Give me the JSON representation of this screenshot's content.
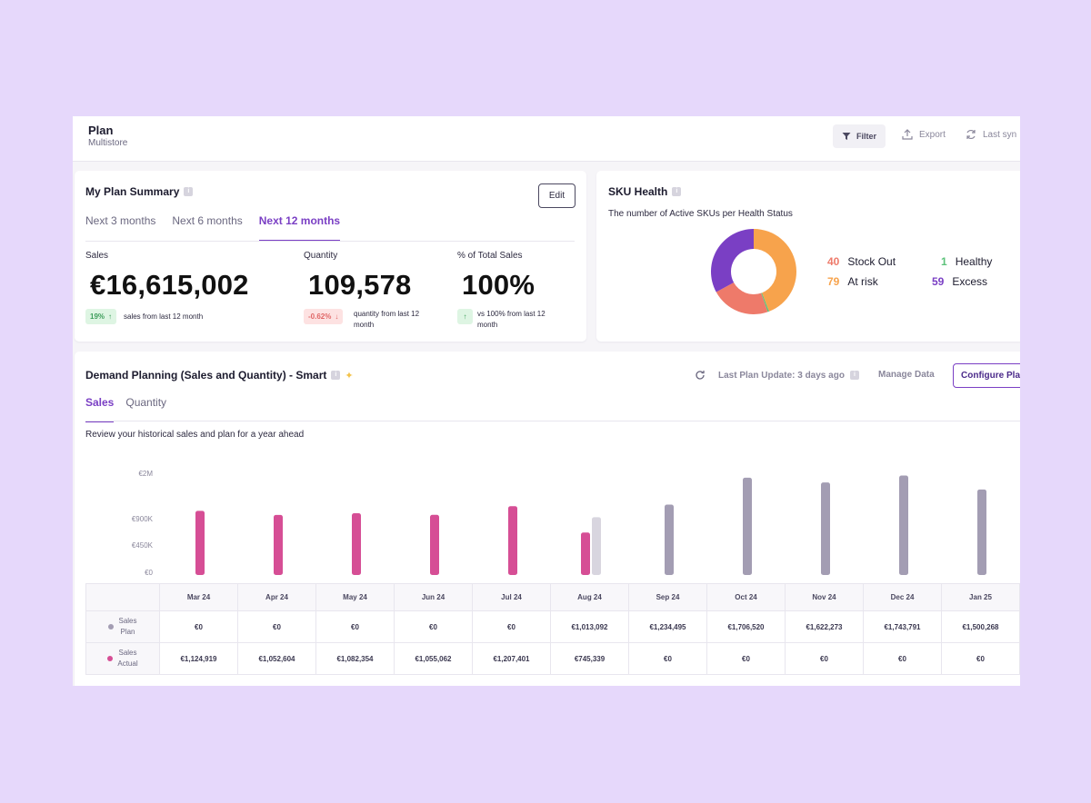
{
  "header": {
    "title": "Plan",
    "subtitle": "Multistore",
    "filter_label": "Filter",
    "export_label": "Export",
    "sync_label": "Last syn"
  },
  "plan_summary": {
    "title": "My Plan Summary",
    "edit_label": "Edit",
    "tabs": [
      {
        "label": "Next 3 months",
        "active": false
      },
      {
        "label": "Next 6 months",
        "active": false
      },
      {
        "label": "Next 12 months",
        "active": true
      }
    ],
    "metrics": [
      {
        "label": "Sales",
        "value": "€16,615,002",
        "badge": "19%",
        "trend": "up",
        "note": "sales from last 12 month"
      },
      {
        "label": "Quantity",
        "value": "109,578",
        "badge": "-0.62%",
        "trend": "down",
        "note": "quantity from last 12 month"
      },
      {
        "label": "% of Total Sales",
        "value": "100%",
        "badge": "",
        "trend": "up",
        "note": "vs 100% from last 12 month"
      }
    ]
  },
  "sku_health": {
    "title": "SKU Health",
    "subtitle": "The number of Active SKUs per Health Status",
    "statuses": [
      {
        "count": "40",
        "label": "Stock Out",
        "color": "#ee7a6a"
      },
      {
        "count": "1",
        "label": "Healthy",
        "color": "#5cc27a"
      },
      {
        "count": "79",
        "label": "At risk",
        "color": "#f7a34c"
      },
      {
        "count": "59",
        "label": "Excess",
        "color": "#7a3fc4"
      }
    ]
  },
  "demand": {
    "title": "Demand Planning (Sales and Quantity) - Smart",
    "last_update": "Last Plan Update: 3 days ago",
    "manage_label": "Manage Data",
    "configure_label": "Configure Pla",
    "tabs": [
      {
        "label": "Sales",
        "active": true
      },
      {
        "label": "Quantity",
        "active": false
      }
    ],
    "description": "Review your historical sales and plan for a year ahead",
    "row_labels": {
      "plan": {
        "top": "Sales",
        "bottom": "Plan",
        "color": "#a39db3"
      },
      "actual": {
        "top": "Sales",
        "bottom": "Actual",
        "color": "#d64e95"
      }
    }
  },
  "chart_data": {
    "type": "bar",
    "categories": [
      "Mar 24",
      "Apr 24",
      "May 24",
      "Jun 24",
      "Jul 24",
      "Aug 24",
      "Sep 24",
      "Oct 24",
      "Nov 24",
      "Dec 24",
      "Jan 25"
    ],
    "y_ticks": [
      "€2M",
      "€900K",
      "€450K",
      "€0"
    ],
    "series": [
      {
        "name": "Sales Plan",
        "color": "#a39db3",
        "values": [
          0,
          0,
          0,
          0,
          0,
          1013092,
          1234495,
          1706520,
          1622273,
          1743791,
          1500268
        ],
        "labels": [
          "€0",
          "€0",
          "€0",
          "€0",
          "€0",
          "€1,013,092",
          "€1,234,495",
          "€1,706,520",
          "€1,622,273",
          "€1,743,791",
          "€1,500,268"
        ]
      },
      {
        "name": "Sales Actual",
        "color": "#d64e95",
        "values": [
          1124919,
          1052604,
          1082354,
          1055062,
          1207401,
          745339,
          0,
          0,
          0,
          0,
          0
        ],
        "labels": [
          "€1,124,919",
          "€1,052,604",
          "€1,082,354",
          "€1,055,062",
          "€1,207,401",
          "€745,339",
          "€0",
          "€0",
          "€0",
          "€0",
          "€0"
        ]
      }
    ]
  }
}
